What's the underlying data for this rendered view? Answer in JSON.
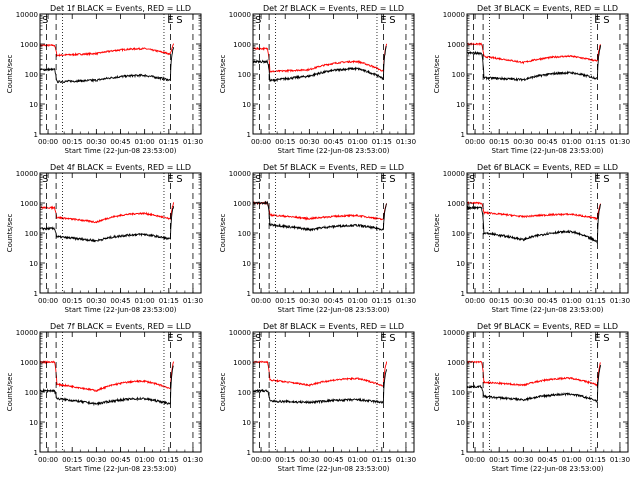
{
  "colors": {
    "events": "#000000",
    "lld": "#ff0000"
  },
  "panels": [
    {
      "title": "Det 1f BLACK = Events, RED = LLD",
      "left_markers": [
        "S"
      ],
      "right_markers": [
        "E",
        "S"
      ],
      "events": {
        "start": 140,
        "dip": 55,
        "mid": 62,
        "hump": 90,
        "end": 62,
        "final": 800
      },
      "lld": {
        "start": 900,
        "dip": 420,
        "mid": 480,
        "hump": 700,
        "end": 460,
        "final": 1000
      }
    },
    {
      "title": "Det 2f BLACK = Events, RED = LLD",
      "left_markers": [
        "S"
      ],
      "right_markers": [
        "E",
        "S"
      ],
      "events": {
        "start": 260,
        "dip": 60,
        "mid": 85,
        "hump": 150,
        "end": 70,
        "final": 900
      },
      "lld": {
        "start": 700,
        "dip": 120,
        "mid": 140,
        "hump": 260,
        "end": 120,
        "final": 1000
      }
    },
    {
      "title": "Det 3f BLACK = Events, RED = LLD",
      "left_markers": [],
      "right_markers": [
        "E",
        "S"
      ],
      "events": {
        "start": 500,
        "dip": 75,
        "mid": 65,
        "hump": 110,
        "end": 70,
        "final": 900
      },
      "lld": {
        "start": 1000,
        "dip": 380,
        "mid": 240,
        "hump": 390,
        "end": 270,
        "final": 1000
      }
    },
    {
      "title": "Det 4f BLACK = Events, RED = LLD",
      "left_markers": [
        "S"
      ],
      "right_markers": [
        "E",
        "S"
      ],
      "events": {
        "start": 140,
        "dip": 75,
        "mid": 55,
        "hump": 90,
        "end": 62,
        "final": 800
      },
      "lld": {
        "start": 700,
        "dip": 330,
        "mid": 230,
        "hump": 450,
        "end": 290,
        "final": 1000
      }
    },
    {
      "title": "Det 5f BLACK = Events, RED = LLD",
      "left_markers": [
        "S"
      ],
      "right_markers": [
        "E",
        "S"
      ],
      "events": {
        "start": 1000,
        "dip": 190,
        "mid": 130,
        "hump": 180,
        "end": 130,
        "final": 1000
      },
      "lld": {
        "start": 1000,
        "dip": 400,
        "mid": 300,
        "hump": 380,
        "end": 280,
        "final": 1000
      }
    },
    {
      "title": "Det 6f BLACK = Events, RED = LLD",
      "left_markers": [
        "S"
      ],
      "right_markers": [
        "E",
        "S"
      ],
      "events": {
        "start": 700,
        "dip": 100,
        "mid": 60,
        "hump": 110,
        "end": 50,
        "final": 900
      },
      "lld": {
        "start": 1000,
        "dip": 480,
        "mid": 350,
        "hump": 420,
        "end": 300,
        "final": 1000
      }
    },
    {
      "title": "Det 7f BLACK = Events, RED = LLD",
      "left_markers": [],
      "right_markers": [
        "E",
        "S"
      ],
      "events": {
        "start": 110,
        "dip": 60,
        "mid": 40,
        "hump": 60,
        "end": 40,
        "final": 800
      },
      "lld": {
        "start": 1000,
        "dip": 180,
        "mid": 110,
        "hump": 230,
        "end": 130,
        "final": 1000
      }
    },
    {
      "title": "Det 8f BLACK = Events, RED = LLD",
      "left_markers": [
        "S"
      ],
      "right_markers": [
        "E",
        "S"
      ],
      "events": {
        "start": 110,
        "dip": 50,
        "mid": 45,
        "hump": 55,
        "end": 45,
        "final": 600
      },
      "lld": {
        "start": 1000,
        "dip": 250,
        "mid": 170,
        "hump": 280,
        "end": 160,
        "final": 1000
      }
    },
    {
      "title": "Det 9f BLACK = Events, RED = LLD",
      "left_markers": [],
      "right_markers": [
        "E",
        "S"
      ],
      "events": {
        "start": 150,
        "dip": 70,
        "mid": 55,
        "hump": 85,
        "end": 50,
        "final": 800
      },
      "lld": {
        "start": 1000,
        "dip": 210,
        "mid": 170,
        "hump": 290,
        "end": 170,
        "final": 1000
      }
    }
  ],
  "chart_data": {
    "type": "line",
    "layout": "3x3 grid of panels",
    "xlabel": "Start Time (22-Jun-08 23:53:00)",
    "ylabel": "Counts/sec",
    "x_ticks": [
      "00:00",
      "00:15",
      "00:30",
      "00:45",
      "01:00",
      "01:15",
      "01:30"
    ],
    "y_ticks": [
      "1",
      "10",
      "100",
      "1000",
      "10000"
    ],
    "y_scale": "log",
    "ylim": [
      1,
      10000
    ],
    "series": [
      "Events (black)",
      "LLD (red)"
    ],
    "vertical_lines": {
      "dashed": [
        "-00:01",
        "00:05",
        "01:16",
        "01:30"
      ],
      "dotted": [
        "00:09",
        "01:12"
      ]
    }
  }
}
